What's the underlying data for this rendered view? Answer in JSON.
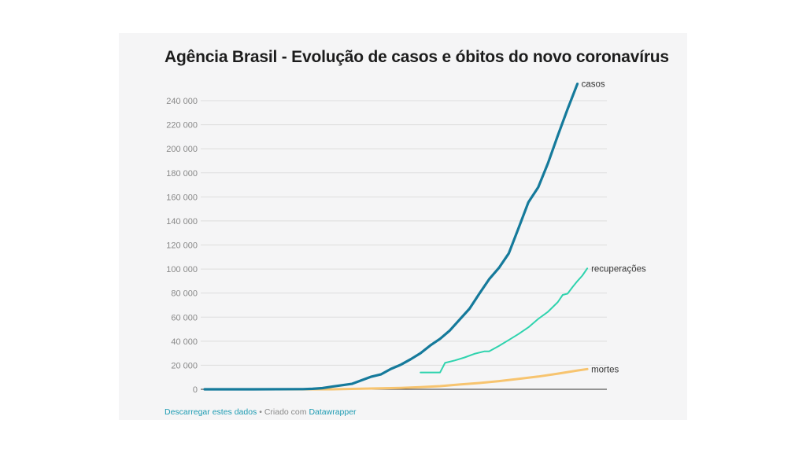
{
  "colors": {
    "background": "#f5f5f6",
    "casos": "#157a9b",
    "recuperacoes": "#2fd3ae",
    "mortes": "#f7c46f",
    "grid": "#dddddd",
    "axis": "#333333",
    "tick_text": "#888888",
    "link": "#1d9bb2"
  },
  "footer": {
    "download_link": "Descarregar estes dados",
    "separator": " • Criado com ",
    "datawrapper_link": "Datawrapper"
  },
  "chart_data": {
    "type": "line",
    "title": "Agência Brasil - Evolução de casos e óbitos do novo coronavírus",
    "xlabel": "",
    "ylabel": "",
    "ylim": [
      0,
      240000
    ],
    "yticks": [
      0,
      20000,
      40000,
      60000,
      80000,
      100000,
      120000,
      140000,
      160000,
      180000,
      200000,
      220000,
      240000
    ],
    "ytick_labels": [
      "0",
      "20 000",
      "40 000",
      "60 000",
      "80 000",
      "100 000",
      "120 000",
      "140 000",
      "160 000",
      "180 000",
      "200 000",
      "220 000",
      "240 000"
    ],
    "grid": true,
    "legend": "inline labels at line ends",
    "x": [
      0,
      2,
      4,
      6,
      8,
      10,
      12,
      14,
      16,
      18,
      20,
      22,
      24,
      26,
      28,
      30,
      32,
      34,
      36,
      38,
      40,
      42,
      44,
      46,
      48,
      50,
      52,
      54,
      56,
      58,
      60,
      62,
      64,
      66,
      68,
      70,
      72,
      74,
      76,
      78,
      80,
      82
    ],
    "series": [
      {
        "name": "casos",
        "color": "#157a9b",
        "points": [
          [
            0,
            0
          ],
          [
            10,
            0
          ],
          [
            20,
            100
          ],
          [
            22,
            400
          ],
          [
            24,
            1000
          ],
          [
            26,
            2200
          ],
          [
            28,
            3400
          ],
          [
            30,
            4500
          ],
          [
            32,
            7500
          ],
          [
            34,
            10500
          ],
          [
            36,
            12500
          ],
          [
            38,
            17000
          ],
          [
            40,
            20500
          ],
          [
            42,
            25000
          ],
          [
            44,
            30000
          ],
          [
            46,
            36500
          ],
          [
            48,
            42000
          ],
          [
            50,
            49000
          ],
          [
            52,
            58000
          ],
          [
            54,
            67000
          ],
          [
            56,
            79500
          ],
          [
            58,
            91500
          ],
          [
            60,
            101000
          ],
          [
            62,
            113000
          ],
          [
            64,
            134000
          ],
          [
            66,
            155500
          ],
          [
            68,
            168000
          ],
          [
            70,
            188000
          ],
          [
            72,
            211000
          ],
          [
            74,
            233000
          ],
          [
            76,
            254000
          ]
        ]
      },
      {
        "name": "recuperações",
        "color": "#2fd3ae",
        "points": [
          [
            44,
            14000
          ],
          [
            48,
            14000
          ],
          [
            49,
            22000
          ],
          [
            51,
            24000
          ],
          [
            53,
            26500
          ],
          [
            55,
            29500
          ],
          [
            57,
            31500
          ],
          [
            58,
            31500
          ],
          [
            60,
            36000
          ],
          [
            62,
            41000
          ],
          [
            64,
            46000
          ],
          [
            66,
            51500
          ],
          [
            68,
            58500
          ],
          [
            70,
            64500
          ],
          [
            72,
            72500
          ],
          [
            73,
            78500
          ],
          [
            74,
            79500
          ],
          [
            75,
            85000
          ],
          [
            76,
            90000
          ],
          [
            77,
            94500
          ],
          [
            78,
            100500
          ]
        ]
      },
      {
        "name": "mortes",
        "color": "#f7c46f",
        "points": [
          [
            0,
            0
          ],
          [
            26,
            0
          ],
          [
            40,
            1200
          ],
          [
            44,
            1800
          ],
          [
            48,
            2600
          ],
          [
            52,
            4000
          ],
          [
            56,
            5200
          ],
          [
            60,
            6800
          ],
          [
            64,
            8600
          ],
          [
            68,
            10600
          ],
          [
            72,
            13000
          ],
          [
            76,
            15600
          ],
          [
            78,
            16800
          ]
        ]
      }
    ],
    "series_labels": [
      "casos",
      "recuperações",
      "mortes"
    ]
  }
}
